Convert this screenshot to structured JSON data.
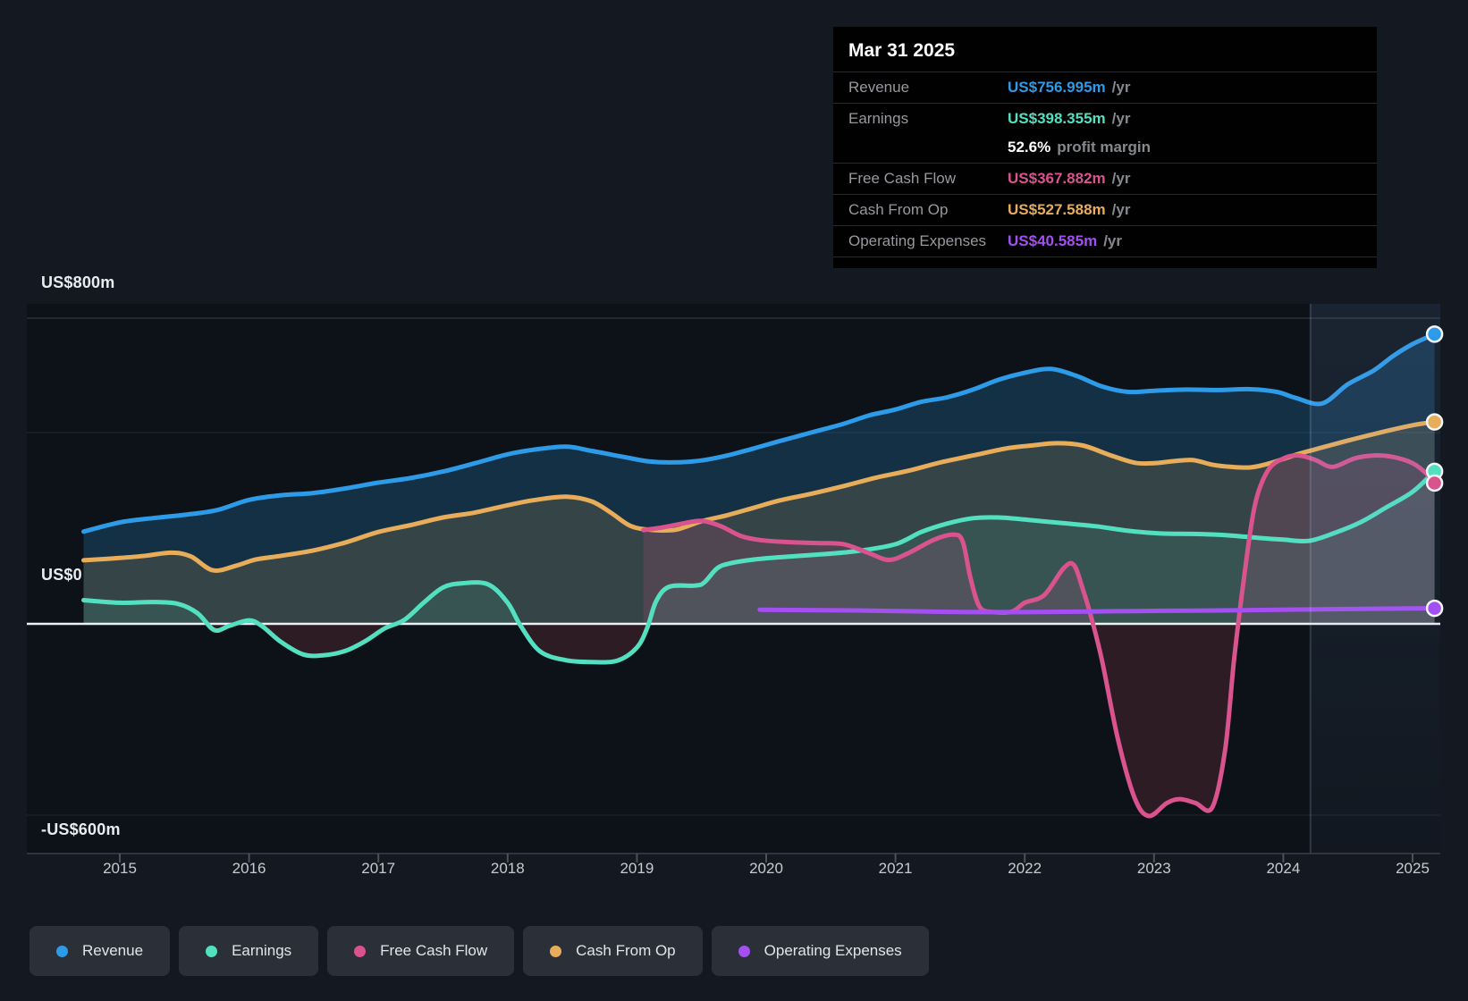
{
  "tooltip": {
    "title": "Mar 31 2025",
    "groups": [
      {
        "rows": [
          {
            "key": "revenue",
            "label": "Revenue",
            "value": "US$756.995m",
            "suffix": "/yr",
            "color": "#2e9be8"
          }
        ]
      },
      {
        "rows": [
          {
            "key": "earnings",
            "label": "Earnings",
            "value": "US$398.355m",
            "suffix": "/yr",
            "color": "#53e0c1"
          },
          {
            "key": "profit-margin",
            "label": "",
            "value": "52.6%",
            "suffix": "profit margin",
            "color": "#ffffff"
          }
        ]
      },
      {
        "rows": [
          {
            "key": "free-cash-flow",
            "label": "Free Cash Flow",
            "value": "US$367.882m",
            "suffix": "/yr",
            "color": "#d9538e"
          }
        ]
      },
      {
        "rows": [
          {
            "key": "cash-from-op",
            "label": "Cash From Op",
            "value": "US$527.588m",
            "suffix": "/yr",
            "color": "#e8ad5a"
          }
        ]
      },
      {
        "rows": [
          {
            "key": "operating-expenses",
            "label": "Operating Expenses",
            "value": "US$40.585m",
            "suffix": "/yr",
            "color": "#a44ff2"
          }
        ]
      }
    ]
  },
  "legend": [
    {
      "key": "revenue",
      "label": "Revenue",
      "color": "#2e9be8"
    },
    {
      "key": "earnings",
      "label": "Earnings",
      "color": "#53e0c1"
    },
    {
      "key": "free-cash-flow",
      "label": "Free Cash Flow",
      "color": "#d9538e"
    },
    {
      "key": "cash-from-op",
      "label": "Cash From Op",
      "color": "#e8ad5a"
    },
    {
      "key": "operating-expenses",
      "label": "Operating Expenses",
      "color": "#a44ff2"
    }
  ],
  "chart_data": {
    "type": "area",
    "unit": "US$ millions per year",
    "x_ticks": [
      2015,
      2016,
      2017,
      2018,
      2019,
      2020,
      2021,
      2022,
      2023,
      2024,
      2025
    ],
    "x_range": [
      2014.72,
      2025.17
    ],
    "y_axis": {
      "labels": [
        "US$800m",
        "US$0",
        "-US$600m"
      ],
      "values_m": [
        800,
        0,
        -600
      ],
      "ylim": [
        -600,
        800
      ],
      "minor_gridlines_m": [
        500,
        -500
      ]
    },
    "highlight_band_start_year": 2024.21,
    "series": [
      {
        "key": "revenue",
        "name": "Revenue",
        "color": "#2e9be8",
        "points": [
          [
            2014.72,
            241
          ],
          [
            2015,
            265
          ],
          [
            2015.25,
            276
          ],
          [
            2015.5,
            285
          ],
          [
            2015.75,
            297
          ],
          [
            2016,
            324
          ],
          [
            2016.25,
            336
          ],
          [
            2016.5,
            342
          ],
          [
            2016.75,
            354
          ],
          [
            2017,
            369
          ],
          [
            2017.25,
            381
          ],
          [
            2017.5,
            398
          ],
          [
            2017.75,
            420
          ],
          [
            2018,
            443
          ],
          [
            2018.2,
            455
          ],
          [
            2018.45,
            463
          ],
          [
            2018.65,
            452
          ],
          [
            2018.9,
            436
          ],
          [
            2019.1,
            424
          ],
          [
            2019.3,
            422
          ],
          [
            2019.5,
            427
          ],
          [
            2019.7,
            440
          ],
          [
            2019.9,
            458
          ],
          [
            2020.1,
            477
          ],
          [
            2020.35,
            500
          ],
          [
            2020.6,
            523
          ],
          [
            2020.8,
            545
          ],
          [
            2021,
            560
          ],
          [
            2021.2,
            580
          ],
          [
            2021.4,
            592
          ],
          [
            2021.6,
            612
          ],
          [
            2021.8,
            638
          ],
          [
            2022,
            656
          ],
          [
            2022.2,
            666
          ],
          [
            2022.4,
            648
          ],
          [
            2022.6,
            620
          ],
          [
            2022.8,
            606
          ],
          [
            2023,
            609
          ],
          [
            2023.25,
            612
          ],
          [
            2023.5,
            611
          ],
          [
            2023.75,
            613
          ],
          [
            2023.95,
            606
          ],
          [
            2024.1,
            590
          ],
          [
            2024.3,
            576
          ],
          [
            2024.5,
            626
          ],
          [
            2024.7,
            662
          ],
          [
            2024.85,
            700
          ],
          [
            2025,
            731
          ],
          [
            2025.17,
            756.995
          ]
        ]
      },
      {
        "key": "cash-from-op",
        "name": "Cash From Op",
        "color": "#e8ad5a",
        "points": [
          [
            2014.72,
            166
          ],
          [
            2015,
            172
          ],
          [
            2015.2,
            178
          ],
          [
            2015.4,
            186
          ],
          [
            2015.55,
            176
          ],
          [
            2015.72,
            140
          ],
          [
            2015.9,
            152
          ],
          [
            2016.05,
            168
          ],
          [
            2016.25,
            178
          ],
          [
            2016.5,
            192
          ],
          [
            2016.75,
            213
          ],
          [
            2017,
            240
          ],
          [
            2017.25,
            258
          ],
          [
            2017.5,
            278
          ],
          [
            2017.75,
            291
          ],
          [
            2018,
            310
          ],
          [
            2018.2,
            323
          ],
          [
            2018.45,
            332
          ],
          [
            2018.65,
            320
          ],
          [
            2018.8,
            290
          ],
          [
            2018.95,
            256
          ],
          [
            2019.1,
            246
          ],
          [
            2019.3,
            246
          ],
          [
            2019.5,
            268
          ],
          [
            2019.7,
            284
          ],
          [
            2019.9,
            303
          ],
          [
            2020.1,
            322
          ],
          [
            2020.35,
            340
          ],
          [
            2020.6,
            360
          ],
          [
            2020.85,
            382
          ],
          [
            2021.1,
            400
          ],
          [
            2021.35,
            422
          ],
          [
            2021.6,
            440
          ],
          [
            2021.85,
            458
          ],
          [
            2022.05,
            466
          ],
          [
            2022.25,
            472
          ],
          [
            2022.45,
            466
          ],
          [
            2022.65,
            442
          ],
          [
            2022.85,
            421
          ],
          [
            2023,
            420
          ],
          [
            2023.15,
            425
          ],
          [
            2023.3,
            428
          ],
          [
            2023.45,
            416
          ],
          [
            2023.6,
            410
          ],
          [
            2023.75,
            409
          ],
          [
            2023.9,
            420
          ],
          [
            2024.1,
            442
          ],
          [
            2024.25,
            456
          ],
          [
            2024.5,
            479
          ],
          [
            2024.75,
            500
          ],
          [
            2025,
            519
          ],
          [
            2025.17,
            527.588
          ]
        ]
      },
      {
        "key": "earnings",
        "name": "Earnings",
        "color": "#53e0c1",
        "points": [
          [
            2014.72,
            62
          ],
          [
            2015,
            55
          ],
          [
            2015.25,
            57
          ],
          [
            2015.45,
            52
          ],
          [
            2015.6,
            28
          ],
          [
            2015.73,
            -16
          ],
          [
            2015.85,
            -5
          ],
          [
            2016,
            9
          ],
          [
            2016.1,
            -6
          ],
          [
            2016.25,
            -48
          ],
          [
            2016.42,
            -80
          ],
          [
            2016.58,
            -82
          ],
          [
            2016.75,
            -70
          ],
          [
            2016.9,
            -45
          ],
          [
            2017.05,
            -12
          ],
          [
            2017.2,
            10
          ],
          [
            2017.35,
            55
          ],
          [
            2017.5,
            95
          ],
          [
            2017.65,
            106
          ],
          [
            2017.85,
            103
          ],
          [
            2018,
            55
          ],
          [
            2018.1,
            -5
          ],
          [
            2018.25,
            -72
          ],
          [
            2018.45,
            -95
          ],
          [
            2018.65,
            -100
          ],
          [
            2018.85,
            -96
          ],
          [
            2019,
            -62
          ],
          [
            2019.08,
            -10
          ],
          [
            2019.15,
            60
          ],
          [
            2019.25,
            97
          ],
          [
            2019.45,
            100
          ],
          [
            2019.52,
            108
          ],
          [
            2019.62,
            145
          ],
          [
            2019.72,
            158
          ],
          [
            2019.9,
            168
          ],
          [
            2020.1,
            174
          ],
          [
            2020.4,
            181
          ],
          [
            2020.7,
            190
          ],
          [
            2021,
            208
          ],
          [
            2021.2,
            240
          ],
          [
            2021.4,
            262
          ],
          [
            2021.6,
            276
          ],
          [
            2021.8,
            278
          ],
          [
            2022.05,
            271
          ],
          [
            2022.3,
            263
          ],
          [
            2022.55,
            255
          ],
          [
            2022.8,
            243
          ],
          [
            2023.05,
            236
          ],
          [
            2023.3,
            235
          ],
          [
            2023.55,
            232
          ],
          [
            2023.8,
            225
          ],
          [
            2024,
            220
          ],
          [
            2024.2,
            217
          ],
          [
            2024.4,
            238
          ],
          [
            2024.6,
            266
          ],
          [
            2024.8,
            305
          ],
          [
            2025,
            345
          ],
          [
            2025.17,
            398.355
          ]
        ]
      },
      {
        "key": "free-cash-flow",
        "name": "Free Cash Flow",
        "color": "#d9538e",
        "points": [
          [
            2019.05,
            245
          ],
          [
            2019.2,
            252
          ],
          [
            2019.35,
            262
          ],
          [
            2019.5,
            269
          ],
          [
            2019.65,
            255
          ],
          [
            2019.8,
            230
          ],
          [
            2019.95,
            219
          ],
          [
            2020.15,
            214
          ],
          [
            2020.4,
            211
          ],
          [
            2020.6,
            208
          ],
          [
            2020.8,
            184
          ],
          [
            2020.95,
            167
          ],
          [
            2021.1,
            185
          ],
          [
            2021.3,
            220
          ],
          [
            2021.45,
            233
          ],
          [
            2021.52,
            215
          ],
          [
            2021.58,
            120
          ],
          [
            2021.65,
            45
          ],
          [
            2021.75,
            31
          ],
          [
            2021.9,
            32
          ],
          [
            2022,
            55
          ],
          [
            2022.15,
            75
          ],
          [
            2022.3,
            145
          ],
          [
            2022.38,
            154
          ],
          [
            2022.45,
            90
          ],
          [
            2022.52,
            10
          ],
          [
            2022.6,
            -100
          ],
          [
            2022.72,
            -300
          ],
          [
            2022.85,
            -455
          ],
          [
            2022.96,
            -502
          ],
          [
            2023.1,
            -468
          ],
          [
            2023.2,
            -458
          ],
          [
            2023.32,
            -468
          ],
          [
            2023.45,
            -480
          ],
          [
            2023.55,
            -330
          ],
          [
            2023.62,
            -90
          ],
          [
            2023.7,
            130
          ],
          [
            2023.78,
            310
          ],
          [
            2023.88,
            400
          ],
          [
            2024,
            432
          ],
          [
            2024.12,
            440
          ],
          [
            2024.25,
            428
          ],
          [
            2024.38,
            410
          ],
          [
            2024.55,
            432
          ],
          [
            2024.7,
            440
          ],
          [
            2024.85,
            436
          ],
          [
            2025,
            420
          ],
          [
            2025.1,
            395
          ],
          [
            2025.17,
            367.882
          ]
        ]
      },
      {
        "key": "operating-expenses",
        "name": "Operating Expenses",
        "color": "#a44ff2",
        "points": [
          [
            2019.95,
            37
          ],
          [
            2020.3,
            36
          ],
          [
            2020.7,
            35
          ],
          [
            2021.1,
            33
          ],
          [
            2021.5,
            31
          ],
          [
            2021.9,
            30.5
          ],
          [
            2022.3,
            31.5
          ],
          [
            2022.7,
            33
          ],
          [
            2023.1,
            34
          ],
          [
            2023.5,
            35
          ],
          [
            2023.9,
            36.5
          ],
          [
            2024.3,
            38
          ],
          [
            2024.7,
            39.5
          ],
          [
            2025,
            40.5
          ],
          [
            2025.17,
            40.585
          ]
        ]
      }
    ]
  }
}
